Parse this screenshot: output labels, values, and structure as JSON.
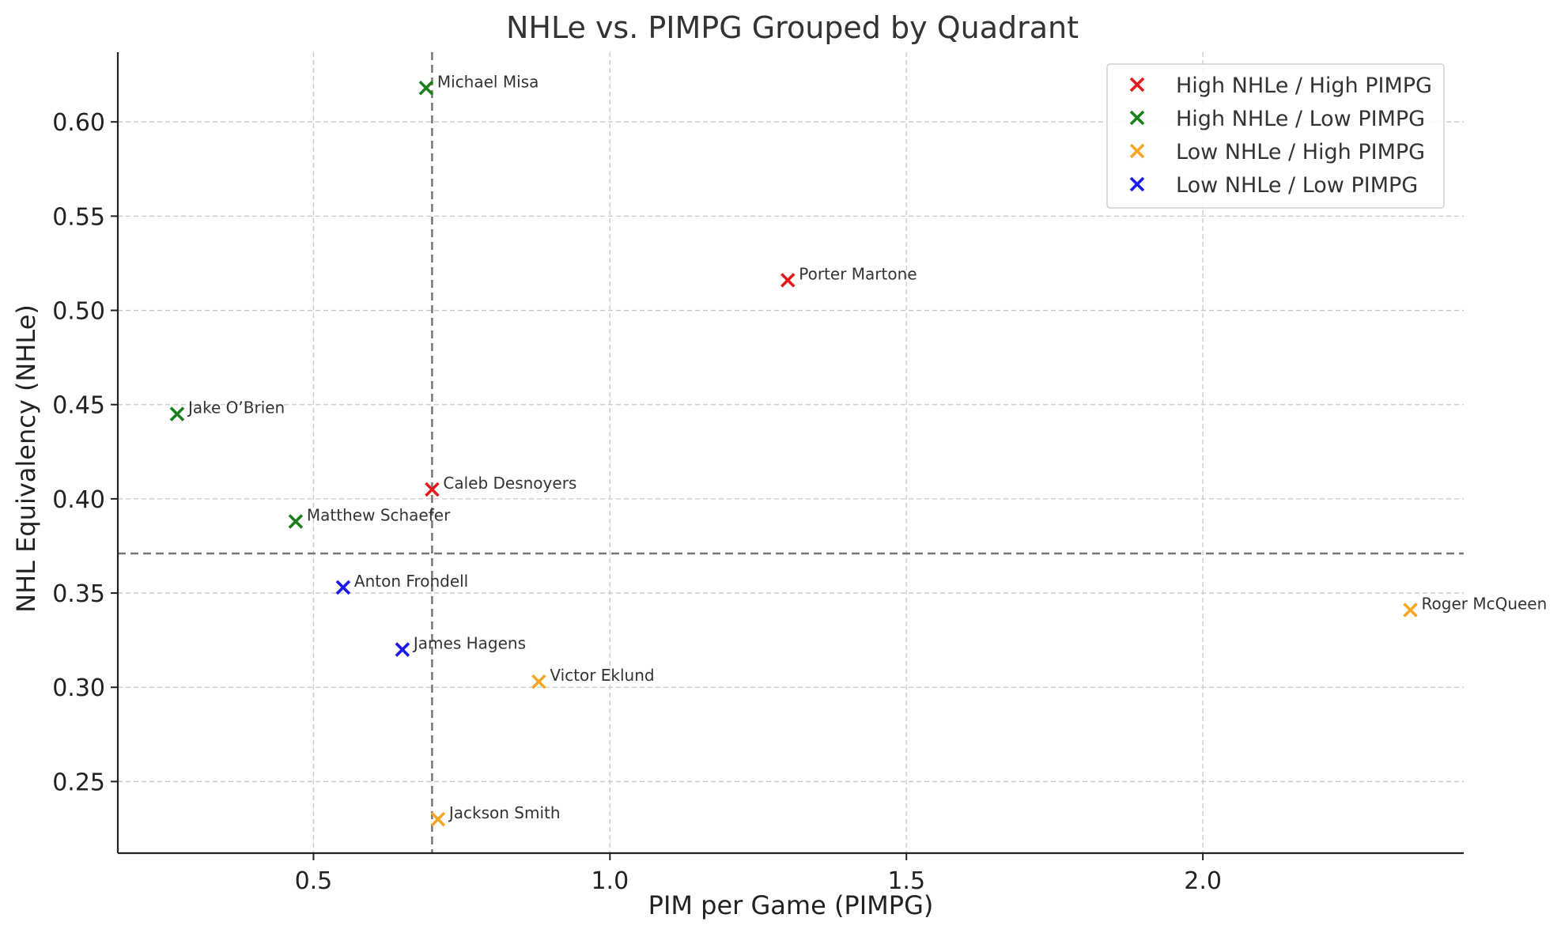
{
  "chart_data": {
    "type": "scatter",
    "title": "NHLe vs. PIMPG Grouped by Quadrant",
    "xlabel": "PIM per Game (PIMPG)",
    "ylabel": "NHL Equivalency (NHLe)",
    "xlim": [
      0.17,
      2.44
    ],
    "ylim": [
      0.212,
      0.637
    ],
    "x_ticks": [
      0.5,
      1.0,
      1.5,
      2.0
    ],
    "x_tick_labels": [
      "0.5",
      "1.0",
      "1.5",
      "2.0"
    ],
    "y_ticks": [
      0.25,
      0.3,
      0.35,
      0.4,
      0.45,
      0.5,
      0.55,
      0.6
    ],
    "y_tick_labels": [
      "0.25",
      "0.30",
      "0.35",
      "0.40",
      "0.45",
      "0.50",
      "0.55",
      "0.60"
    ],
    "grid": true,
    "reference_lines": {
      "x": 0.7,
      "y": 0.371
    },
    "legend_position": "top-right",
    "series": [
      {
        "name": "High NHLe / High PIMPG",
        "color": "#e31a1c",
        "points": [
          {
            "label": "Porter Martone",
            "x": 1.3,
            "y": 0.516
          },
          {
            "label": "Caleb Desnoyers",
            "x": 0.7,
            "y": 0.405
          }
        ]
      },
      {
        "name": "High NHLe / Low PIMPG",
        "color": "#1a7f1a",
        "points": [
          {
            "label": "Michael Misa",
            "x": 0.69,
            "y": 0.618
          },
          {
            "label": "Jake O’Brien",
            "x": 0.27,
            "y": 0.445
          },
          {
            "label": "Matthew Schaefer",
            "x": 0.47,
            "y": 0.388
          }
        ]
      },
      {
        "name": "Low NHLe / High PIMPG",
        "color": "#f5a623",
        "points": [
          {
            "label": "Roger McQueen",
            "x": 2.35,
            "y": 0.341
          },
          {
            "label": "Victor Eklund",
            "x": 0.88,
            "y": 0.303
          },
          {
            "label": "Jackson Smith",
            "x": 0.71,
            "y": 0.23
          }
        ]
      },
      {
        "name": "Low NHLe / Low PIMPG",
        "color": "#1a1aee",
        "points": [
          {
            "label": "Anton Frondell",
            "x": 0.55,
            "y": 0.353
          },
          {
            "label": "James Hagens",
            "x": 0.65,
            "y": 0.32
          }
        ]
      }
    ]
  }
}
